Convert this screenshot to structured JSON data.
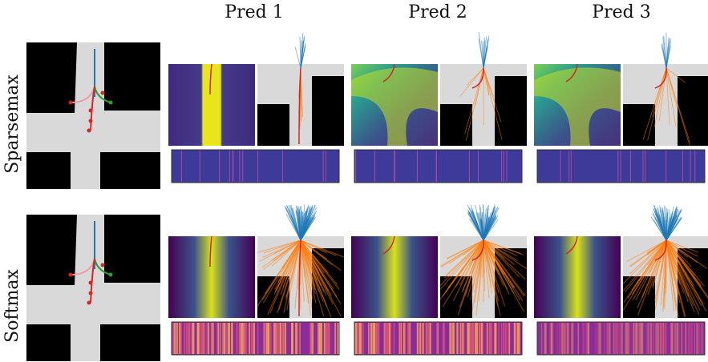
{
  "columns": [
    "Pred 1",
    "Pred 2",
    "Pred 3"
  ],
  "rows": [
    "Sparsemax",
    "Softmax"
  ]
}
